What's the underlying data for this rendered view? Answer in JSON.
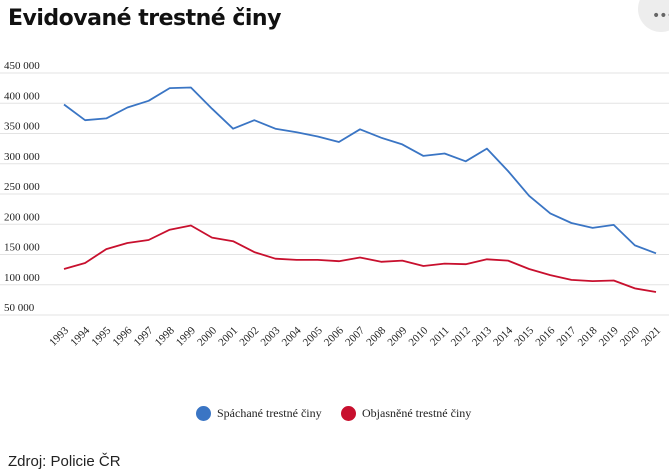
{
  "title": "Evidované trestné činy",
  "menu_glyph": "•••",
  "source": "Zdroj: Policie ČR",
  "chart_data": {
    "type": "line",
    "title": "Evidované trestné činy",
    "x": [
      "1993",
      "1994",
      "1995",
      "1996",
      "1997",
      "1998",
      "1999",
      "2000",
      "2001",
      "2002",
      "2003",
      "2004",
      "2005",
      "2006",
      "2007",
      "2008",
      "2009",
      "2010",
      "2011",
      "2012",
      "2013",
      "2014",
      "2015",
      "2016",
      "2017",
      "2018",
      "2019",
      "2020",
      "2021"
    ],
    "ylim": [
      50000,
      450000
    ],
    "yticks": [
      50000,
      100000,
      150000,
      200000,
      250000,
      300000,
      350000,
      400000,
      450000
    ],
    "ytick_labels": [
      "50 000",
      "100 000",
      "150 000",
      "200 000",
      "250 000",
      "300 000",
      "350 000",
      "400 000",
      "450 000"
    ],
    "grid": true,
    "legend_position": "bottom-center",
    "series": [
      {
        "name": "Spáchané trestné činy",
        "color": "#3a75c4",
        "values": [
          398000,
          372000,
          375000,
          393000,
          404000,
          425000,
          426000,
          391000,
          358000,
          372000,
          358000,
          352000,
          345000,
          336000,
          357000,
          343000,
          332000,
          313000,
          317000,
          304000,
          325000,
          288000,
          247000,
          218000,
          202000,
          194000,
          199000,
          165000,
          152000
        ]
      },
      {
        "name": "Objasněné trestné činy",
        "color": "#c8102e",
        "values": [
          126000,
          136000,
          159000,
          169000,
          174000,
          191000,
          198000,
          178000,
          172000,
          154000,
          143000,
          141000,
          141000,
          139000,
          145000,
          138000,
          140000,
          131000,
          135000,
          134000,
          142000,
          140000,
          126000,
          116000,
          108000,
          106000,
          107000,
          94000,
          88000
        ]
      }
    ]
  }
}
